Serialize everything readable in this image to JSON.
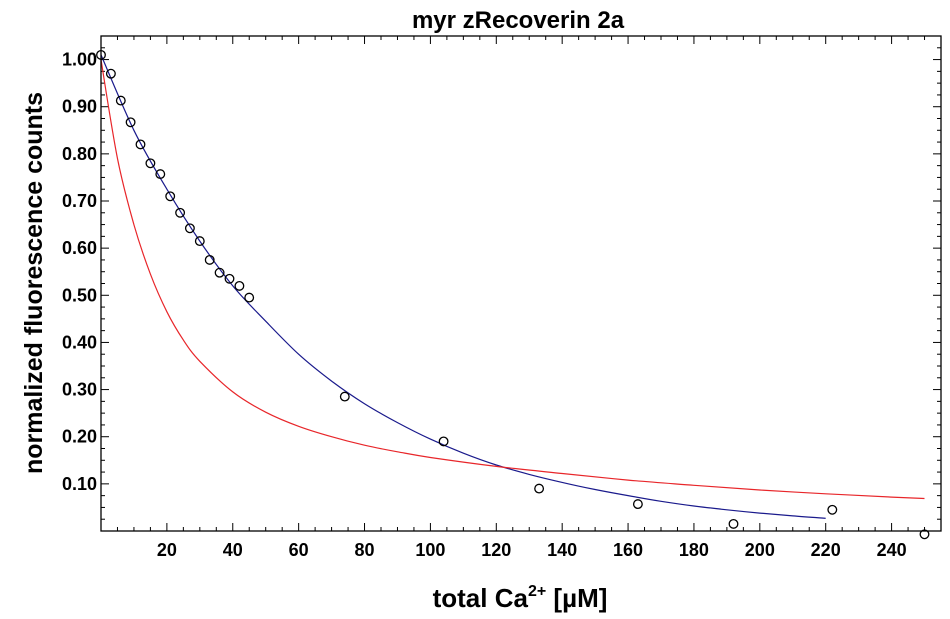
{
  "chart_data": {
    "type": "scatter",
    "title": "myr zRecoverin 2a",
    "ylabel": "normalized fluorescence counts",
    "xlabel": {
      "main": "total Ca",
      "superscript": "2+",
      "unit": " [µM]"
    },
    "xlim": [
      0,
      255
    ],
    "ylim": [
      0,
      1.05
    ],
    "x_ticks": [
      20,
      40,
      60,
      80,
      100,
      120,
      140,
      160,
      180,
      200,
      220,
      240
    ],
    "x_tick_labels": [
      "20",
      "40",
      "60",
      "80",
      "100",
      "120",
      "140",
      "160",
      "180",
      "200",
      "220",
      "240"
    ],
    "y_ticks": [
      0.1,
      0.2,
      0.3,
      0.4,
      0.5,
      0.6,
      0.7,
      0.8,
      0.9,
      1.0
    ],
    "y_tick_labels": [
      "0.10",
      "0.20",
      "0.30",
      "0.40",
      "0.50",
      "0.60",
      "0.70",
      "0.80",
      "0.90",
      "1.00"
    ],
    "series": [
      {
        "name": "data",
        "kind": "points",
        "x": [
          0,
          3,
          6,
          9,
          12,
          15,
          18,
          21,
          24,
          27,
          30,
          33,
          36,
          39,
          42,
          45,
          74,
          104,
          133,
          163,
          192,
          222,
          250
        ],
        "y": [
          1.01,
          0.97,
          0.913,
          0.867,
          0.82,
          0.78,
          0.757,
          0.71,
          0.675,
          0.642,
          0.615,
          0.575,
          0.548,
          0.535,
          0.52,
          0.495,
          0.285,
          0.19,
          0.09,
          0.057,
          0.015,
          0.045,
          -0.007
        ]
      },
      {
        "name": "fit",
        "kind": "line",
        "color": "#1a1a8c",
        "x": [
          0,
          10,
          20,
          30,
          40,
          50,
          60,
          70,
          80,
          90,
          100,
          110,
          120,
          130,
          140,
          150,
          160,
          170,
          180,
          190,
          200,
          210,
          220
        ],
        "y": [
          1.01,
          0.85,
          0.725,
          0.615,
          0.52,
          0.445,
          0.375,
          0.318,
          0.27,
          0.23,
          0.195,
          0.165,
          0.14,
          0.12,
          0.103,
          0.088,
          0.075,
          0.063,
          0.053,
          0.045,
          0.038,
          0.032,
          0.027
        ]
      },
      {
        "name": "model",
        "kind": "line",
        "color": "#e8262a",
        "x": [
          0,
          5,
          10,
          15,
          20,
          25,
          30,
          40,
          50,
          60,
          70,
          80,
          90,
          100,
          120,
          140,
          160,
          180,
          200,
          220,
          240,
          250
        ],
        "y": [
          1.0,
          0.79,
          0.65,
          0.545,
          0.465,
          0.405,
          0.36,
          0.295,
          0.252,
          0.222,
          0.2,
          0.182,
          0.168,
          0.156,
          0.137,
          0.122,
          0.108,
          0.097,
          0.087,
          0.079,
          0.072,
          0.069
        ]
      }
    ]
  }
}
